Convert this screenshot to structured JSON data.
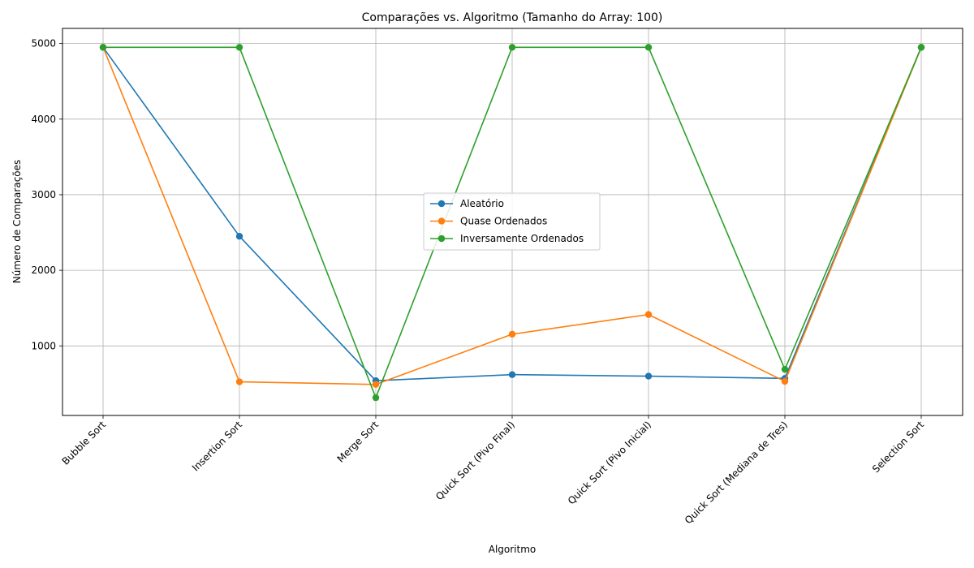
{
  "chart_data": {
    "type": "line",
    "title": "Comparações vs. Algoritmo (Tamanho do Array: 100)",
    "xlabel": "Algoritmo",
    "ylabel": "Número de Comparações",
    "categories": [
      "Bubble Sort",
      "Insertion Sort",
      "Merge Sort",
      "Quick Sort (Pivo Final)",
      "Quick Sort (Pivo Inicial)",
      "Quick Sort (Mediana de Tres)",
      "Selection Sort"
    ],
    "ylim": [
      80,
      5200
    ],
    "yticks": [
      1000,
      2000,
      3000,
      4000,
      5000
    ],
    "grid": true,
    "legend_position": "center",
    "series": [
      {
        "name": "Aleatório",
        "color": "#1f77b4",
        "values": [
          4950,
          2450,
          540,
          620,
          600,
          570,
          4950
        ]
      },
      {
        "name": "Quase Ordenados",
        "color": "#ff7f0e",
        "values": [
          4950,
          525,
          490,
          1155,
          1415,
          530,
          4950
        ]
      },
      {
        "name": "Inversamente Ordenados",
        "color": "#2ca02c",
        "values": [
          4950,
          4950,
          315,
          4950,
          4950,
          690,
          4950
        ]
      }
    ]
  }
}
